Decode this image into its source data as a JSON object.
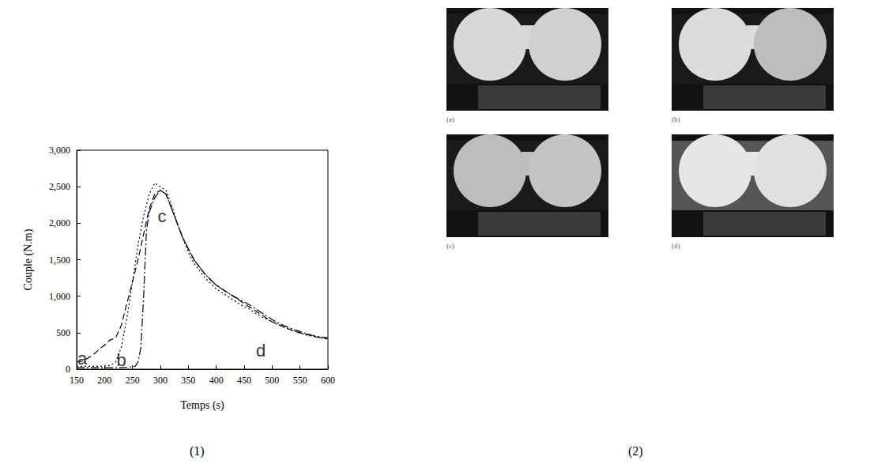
{
  "chart_data": {
    "type": "line",
    "x_label": "Temps (s)",
    "y_label": "Couple (N.m)",
    "xlim": [
      150,
      600
    ],
    "xticks": [
      150,
      200,
      250,
      300,
      350,
      400,
      450,
      500,
      550,
      600
    ],
    "ylim": [
      0,
      3000
    ],
    "yticks": [
      0,
      500,
      1000,
      1500,
      2000,
      2500,
      3000
    ],
    "grid": false,
    "series": [
      {
        "color": "#000000",
        "line_style": "dashed",
        "x": [
          150,
          160,
          170,
          180,
          190,
          200,
          210,
          220,
          230,
          240,
          250,
          260,
          270,
          280,
          290,
          300,
          310,
          320,
          330,
          340,
          350,
          360,
          380,
          400,
          420,
          440,
          460,
          480,
          500,
          520,
          540,
          560,
          580,
          600
        ],
        "values": [
          100,
          110,
          150,
          200,
          270,
          330,
          400,
          430,
          600,
          900,
          1200,
          1500,
          1850,
          2200,
          2400,
          2450,
          2400,
          2200,
          2000,
          1800,
          1650,
          1500,
          1300,
          1150,
          1050,
          950,
          850,
          750,
          650,
          580,
          520,
          480,
          440,
          420
        ]
      },
      {
        "color": "#000000",
        "line_style": "dotted",
        "x": [
          150,
          170,
          190,
          210,
          220,
          230,
          240,
          250,
          260,
          270,
          280,
          290,
          300,
          310,
          320,
          330,
          340,
          350,
          360,
          380,
          400,
          420,
          440,
          460,
          480,
          500,
          520,
          540,
          560,
          580,
          600
        ],
        "values": [
          40,
          40,
          40,
          50,
          100,
          300,
          700,
          1200,
          1700,
          2100,
          2400,
          2550,
          2500,
          2450,
          2250,
          2000,
          1800,
          1600,
          1450,
          1250,
          1100,
          1000,
          900,
          820,
          720,
          650,
          580,
          520,
          470,
          440,
          410
        ]
      },
      {
        "color": "#000000",
        "line_style": "dashdot",
        "x": [
          150,
          180,
          210,
          240,
          255,
          260,
          265,
          270,
          275,
          280,
          290,
          300,
          310,
          320,
          330,
          340,
          350,
          360,
          380,
          400,
          420,
          440,
          460,
          480,
          500,
          520,
          540,
          560,
          580,
          600
        ],
        "values": [
          20,
          20,
          20,
          25,
          40,
          100,
          300,
          1000,
          1900,
          2150,
          2350,
          2450,
          2400,
          2200,
          2000,
          1800,
          1650,
          1500,
          1300,
          1150,
          1050,
          960,
          880,
          780,
          680,
          600,
          540,
          490,
          450,
          430
        ]
      }
    ],
    "annotations": [
      {
        "text": "a",
        "x": 160,
        "y": 150
      },
      {
        "text": "b",
        "x": 230,
        "y": 120
      },
      {
        "text": "c",
        "x": 303,
        "y": 2100
      },
      {
        "text": "d",
        "x": 480,
        "y": 250
      }
    ]
  },
  "figure": {
    "captions": [
      "(1)",
      "(2)"
    ],
    "photos": [
      {
        "label": "(a)"
      },
      {
        "label": "(b)"
      },
      {
        "label": "(c)"
      },
      {
        "label": "(d)"
      }
    ]
  }
}
